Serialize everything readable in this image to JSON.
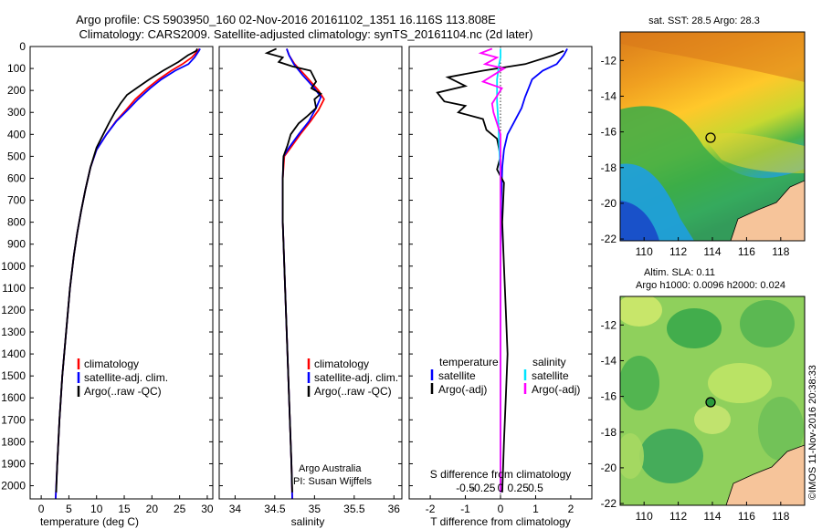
{
  "header": {
    "line1": "Argo profile: CS 5903950_160 02-Nov-2016 20161102_1351 16.116S 113.808E",
    "line2": "Climatology: CARS2009. Satellite-adjusted climatology: synTS_20161104.nc (2d later)"
  },
  "depth_axis": {
    "ticks": [
      0,
      100,
      200,
      300,
      400,
      500,
      600,
      700,
      800,
      900,
      1000,
      1100,
      1200,
      1300,
      1400,
      1500,
      1600,
      1700,
      1800,
      1900,
      2000
    ],
    "ylim": [
      0,
      2060
    ]
  },
  "colors": {
    "climatology": "#ff0000",
    "satellite": "#0000ff",
    "argo": "#000000",
    "sal_satellite": "#00e5ff",
    "sal_argo": "#ff00ff"
  },
  "chart_data": [
    {
      "type": "line",
      "xlabel": "temperature (deg C)",
      "xlim": [
        -2,
        31
      ],
      "xticks": [
        0,
        5,
        10,
        15,
        20,
        25,
        30
      ],
      "legend": [
        "climatology",
        "satellite-adj. clim.",
        "Argo(..raw -QC)"
      ],
      "series": [
        {
          "name": "climatology",
          "points": [
            [
              28.6,
              10
            ],
            [
              28.3,
              20
            ],
            [
              27.2,
              50
            ],
            [
              25.5,
              80
            ],
            [
              23.5,
              110
            ],
            [
              21.2,
              150
            ],
            [
              19.2,
              190
            ],
            [
              17.0,
              240
            ],
            [
              15.3,
              290
            ],
            [
              13.5,
              340
            ],
            [
              11.8,
              400
            ],
            [
              10.0,
              470
            ],
            [
              8.9,
              550
            ],
            [
              8.0,
              650
            ],
            [
              7.2,
              750
            ],
            [
              6.5,
              850
            ],
            [
              5.9,
              950
            ],
            [
              5.2,
              1100
            ],
            [
              4.5,
              1300
            ],
            [
              3.8,
              1500
            ],
            [
              3.3,
              1700
            ],
            [
              2.9,
              1900
            ],
            [
              2.6,
              2060
            ]
          ]
        },
        {
          "name": "satellite-adj. clim.",
          "points": [
            [
              28.7,
              10
            ],
            [
              28.5,
              20
            ],
            [
              27.7,
              50
            ],
            [
              26.6,
              80
            ],
            [
              24.2,
              110
            ],
            [
              21.7,
              150
            ],
            [
              19.7,
              190
            ],
            [
              17.5,
              240
            ],
            [
              15.6,
              290
            ],
            [
              13.6,
              340
            ],
            [
              11.8,
              400
            ],
            [
              10.0,
              470
            ],
            [
              8.9,
              550
            ],
            [
              8.0,
              650
            ],
            [
              7.2,
              750
            ],
            [
              6.5,
              850
            ],
            [
              5.9,
              950
            ],
            [
              5.2,
              1100
            ],
            [
              4.5,
              1300
            ],
            [
              3.8,
              1500
            ],
            [
              3.3,
              1700
            ],
            [
              2.9,
              1900
            ],
            [
              2.6,
              2060
            ]
          ]
        },
        {
          "name": "Argo(..raw -QC)",
          "points": [
            [
              28.2,
              10
            ],
            [
              28.0,
              20
            ],
            [
              26.5,
              40
            ],
            [
              24.8,
              70
            ],
            [
              22.0,
              110
            ],
            [
              19.5,
              150
            ],
            [
              17.2,
              190
            ],
            [
              15.5,
              220
            ],
            [
              14.3,
              260
            ],
            [
              13.3,
              300
            ],
            [
              12.2,
              350
            ],
            [
              11.2,
              400
            ],
            [
              10.0,
              460
            ],
            [
              8.9,
              550
            ],
            [
              8.0,
              650
            ],
            [
              7.2,
              750
            ],
            [
              6.5,
              850
            ],
            [
              5.9,
              950
            ],
            [
              5.2,
              1100
            ],
            [
              4.5,
              1300
            ],
            [
              3.8,
              1500
            ],
            [
              3.3,
              1700
            ],
            [
              2.9,
              1900
            ],
            [
              2.7,
              2030
            ]
          ]
        }
      ]
    },
    {
      "type": "line",
      "xlabel": "salinity",
      "xlim": [
        33.8,
        36.1
      ],
      "xticks": [
        34,
        34.5,
        35,
        35.5,
        36
      ],
      "xticklabels": [
        "34",
        "34.5",
        "35",
        "35.5",
        "36"
      ],
      "legend": [
        "climatology",
        "satellite-adj. clim.",
        "Argo(..raw -QC)"
      ],
      "annotation": [
        "Argo Australia",
        "PI: Susan Wijffels"
      ],
      "series": [
        {
          "name": "climatology",
          "points": [
            [
              34.65,
              10
            ],
            [
              34.68,
              40
            ],
            [
              34.75,
              80
            ],
            [
              34.88,
              130
            ],
            [
              35.05,
              200
            ],
            [
              35.12,
              240
            ],
            [
              35.05,
              290
            ],
            [
              34.95,
              340
            ],
            [
              34.82,
              400
            ],
            [
              34.7,
              460
            ],
            [
              34.62,
              500
            ],
            [
              34.6,
              600
            ],
            [
              34.6,
              800
            ],
            [
              34.62,
              1000
            ],
            [
              34.65,
              1300
            ],
            [
              34.68,
              1600
            ],
            [
              34.71,
              1900
            ],
            [
              34.72,
              2060
            ]
          ]
        },
        {
          "name": "satellite-adj. clim.",
          "points": [
            [
              34.65,
              10
            ],
            [
              34.68,
              40
            ],
            [
              34.74,
              80
            ],
            [
              34.85,
              130
            ],
            [
              35.0,
              190
            ],
            [
              35.08,
              230
            ],
            [
              35.02,
              280
            ],
            [
              34.93,
              340
            ],
            [
              34.8,
              400
            ],
            [
              34.68,
              460
            ],
            [
              34.61,
              500
            ],
            [
              34.6,
              600
            ],
            [
              34.6,
              800
            ],
            [
              34.62,
              1000
            ],
            [
              34.65,
              1300
            ],
            [
              34.68,
              1600
            ],
            [
              34.71,
              1900
            ],
            [
              34.72,
              2060
            ]
          ]
        },
        {
          "name": "Argo(..raw -QC)",
          "points": [
            [
              34.52,
              10
            ],
            [
              34.4,
              30
            ],
            [
              34.6,
              50
            ],
            [
              34.55,
              70
            ],
            [
              34.72,
              90
            ],
            [
              34.95,
              110
            ],
            [
              35.02,
              160
            ],
            [
              34.96,
              190
            ],
            [
              35.08,
              215
            ],
            [
              35.0,
              240
            ],
            [
              35.02,
              280
            ],
            [
              34.9,
              320
            ],
            [
              34.8,
              350
            ],
            [
              34.7,
              400
            ],
            [
              34.66,
              450
            ],
            [
              34.61,
              500
            ],
            [
              34.6,
              600
            ],
            [
              34.6,
              800
            ],
            [
              34.62,
              1000
            ],
            [
              34.65,
              1300
            ],
            [
              34.68,
              1600
            ],
            [
              34.71,
              1900
            ],
            [
              34.72,
              2030
            ]
          ]
        }
      ]
    },
    {
      "type": "line",
      "xlabel": "T difference from climatology",
      "xlim": [
        -2.6,
        2.6
      ],
      "xticks": [
        -2,
        -1,
        0,
        1,
        2
      ],
      "xticklabels": [
        "-2",
        "-1",
        "0",
        "1",
        "2"
      ],
      "top_axis_label": "S difference from climatology",
      "top_ticks": [
        -0.5,
        -0.25,
        0,
        0.25,
        0.5
      ],
      "top_ticklabels": [
        "-0.5",
        "-0.25",
        "0",
        "0.25",
        "0.5"
      ],
      "legend_headers": [
        "temperature",
        "salinity"
      ],
      "legend": [
        "satellite",
        "Argo(-adj)",
        "satellite",
        "Argo(-adj)"
      ],
      "series": [
        {
          "name": "satellite",
          "points": [
            [
              1.9,
              10
            ],
            [
              1.8,
              40
            ],
            [
              1.6,
              80
            ],
            [
              1.2,
              110
            ],
            [
              0.9,
              150
            ],
            [
              0.8,
              190
            ],
            [
              0.7,
              230
            ],
            [
              0.6,
              280
            ],
            [
              0.4,
              340
            ],
            [
              0.2,
              400
            ],
            [
              0.1,
              470
            ],
            [
              0.05,
              550
            ],
            [
              0.02,
              700
            ],
            [
              0.0,
              1000
            ],
            [
              0.0,
              1500
            ],
            [
              0.0,
              2030
            ]
          ]
        },
        {
          "name": "Argo(-adj)",
          "points": [
            [
              1.8,
              20
            ],
            [
              1.5,
              40
            ],
            [
              0.7,
              80
            ],
            [
              -0.5,
              110
            ],
            [
              -1.5,
              140
            ],
            [
              -1.0,
              180
            ],
            [
              -1.8,
              210
            ],
            [
              -1.6,
              250
            ],
            [
              -1.0,
              270
            ],
            [
              -1.2,
              300
            ],
            [
              -0.5,
              330
            ],
            [
              -0.4,
              380
            ],
            [
              -0.1,
              420
            ],
            [
              0.0,
              500
            ],
            [
              -0.1,
              560
            ],
            [
              0.1,
              620
            ],
            [
              0.05,
              800
            ],
            [
              0.1,
              1000
            ],
            [
              0.15,
              1200
            ],
            [
              0.2,
              1400
            ],
            [
              0.15,
              1600
            ],
            [
              0.1,
              1800
            ],
            [
              0.05,
              2030
            ]
          ]
        },
        {
          "name": "satellite",
          "points": [
            [
              0,
              10
            ],
            [
              0,
              50
            ],
            [
              -0.02,
              80
            ],
            [
              -0.05,
              150
            ],
            [
              -0.05,
              250
            ],
            [
              -0.03,
              350
            ],
            [
              -0.02,
              450
            ],
            [
              0,
              600
            ],
            [
              0,
              2030
            ]
          ]
        },
        {
          "name": "Argo(-adj)",
          "points": [
            [
              -0.12,
              10
            ],
            [
              -0.28,
              30
            ],
            [
              -0.05,
              50
            ],
            [
              -0.22,
              80
            ],
            [
              0.05,
              100
            ],
            [
              -0.1,
              130
            ],
            [
              -0.25,
              160
            ],
            [
              0.02,
              190
            ],
            [
              -0.06,
              230
            ],
            [
              -0.12,
              260
            ],
            [
              -0.1,
              300
            ],
            [
              -0.05,
              350
            ],
            [
              0,
              400
            ],
            [
              0,
              2030
            ]
          ]
        }
      ]
    }
  ],
  "maps": {
    "xticks": [
      110,
      112,
      114,
      116,
      118
    ],
    "yticks": [
      -12,
      -14,
      -16,
      -18,
      -20,
      -22
    ],
    "top": {
      "title": "sat. SST: 28.5 Argo: 28.3"
    },
    "bottom": {
      "title_line1": "Altim. SLA: 0.11",
      "title_line2": "Argo h1000: 0.0096 h2000: 0.024"
    },
    "float_position": {
      "lon": 113.808,
      "lat": -16.116
    }
  },
  "credit": "©IMOS 11-Nov-2016 20:38:33"
}
